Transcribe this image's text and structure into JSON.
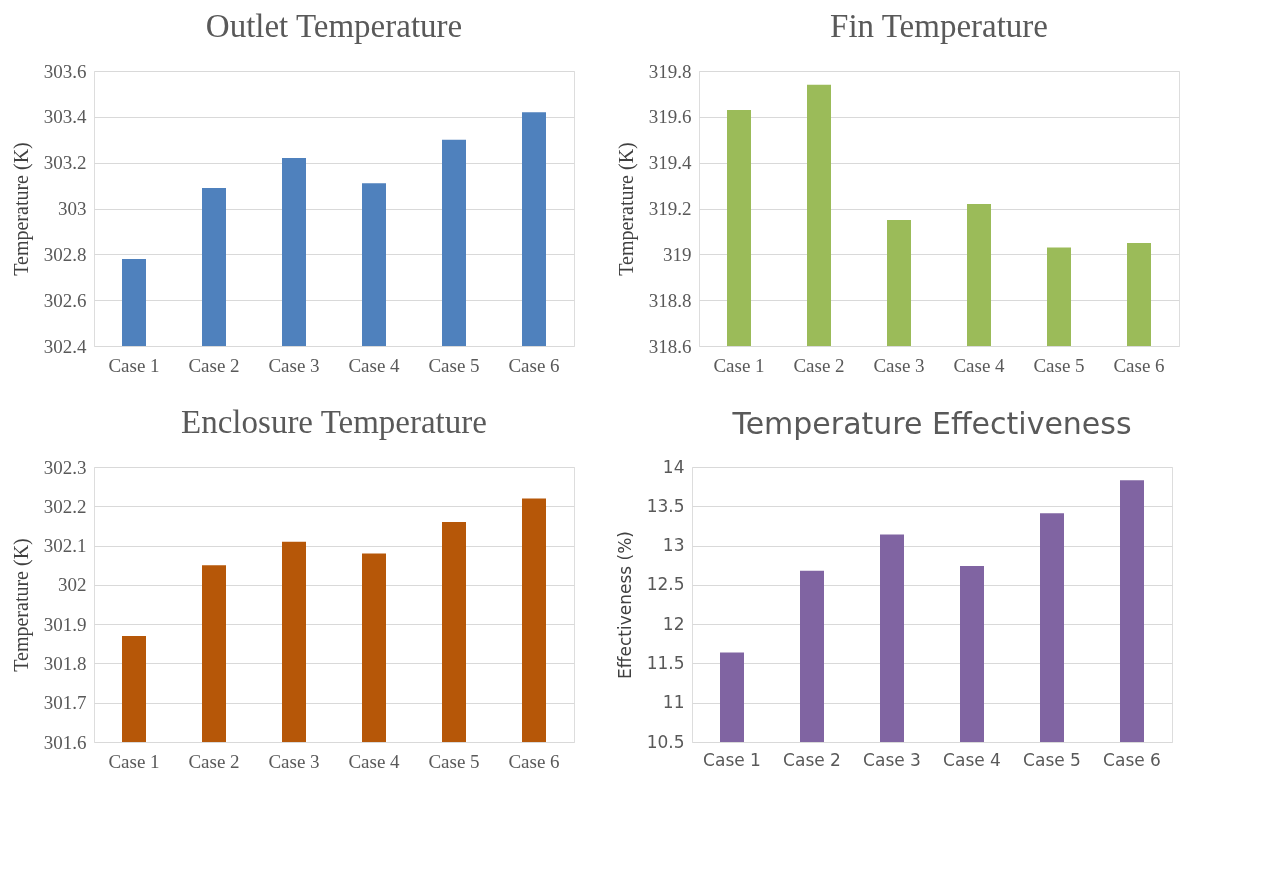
{
  "chart_data": [
    {
      "type": "bar",
      "title": "Outlet Temperature",
      "ylabel": "Temperature (K)",
      "categories": [
        "Case 1",
        "Case 2",
        "Case 3",
        "Case 4",
        "Case 5",
        "Case 6"
      ],
      "values": [
        302.78,
        303.09,
        303.22,
        303.11,
        303.3,
        303.42
      ],
      "color": "#4f81bd",
      "ylim": [
        302.4,
        303.6
      ],
      "yticks": [
        302.4,
        302.6,
        302.8,
        303,
        303.2,
        303.4,
        303.6
      ],
      "grid": "y"
    },
    {
      "type": "bar",
      "title": "Fin Temperature",
      "ylabel": "Temperature (K)",
      "categories": [
        "Case 1",
        "Case 2",
        "Case 3",
        "Case 4",
        "Case 5",
        "Case 6"
      ],
      "values": [
        319.63,
        319.74,
        319.15,
        319.22,
        319.03,
        319.05
      ],
      "color": "#9bbb59",
      "ylim": [
        318.6,
        319.8
      ],
      "yticks": [
        318.6,
        318.8,
        319,
        319.2,
        319.4,
        319.6,
        319.8
      ],
      "grid": "y"
    },
    {
      "type": "bar",
      "title": "Enclosure Temperature",
      "ylabel": "Temperature (K)",
      "categories": [
        "Case 1",
        "Case 2",
        "Case 3",
        "Case 4",
        "Case 5",
        "Case 6"
      ],
      "values": [
        301.87,
        302.05,
        302.11,
        302.08,
        302.16,
        302.22
      ],
      "color": "#b65708",
      "ylim": [
        301.6,
        302.3
      ],
      "yticks": [
        301.6,
        301.7,
        301.8,
        301.9,
        302,
        302.1,
        302.2,
        302.3
      ],
      "grid": "y"
    },
    {
      "type": "bar",
      "title": "Temperature Effectiveness",
      "ylabel": "Effectiveness (%)",
      "categories": [
        "Case 1",
        "Case 2",
        "Case 3",
        "Case 4",
        "Case 5",
        "Case 6"
      ],
      "values": [
        11.64,
        12.68,
        13.14,
        12.74,
        13.41,
        13.83
      ],
      "color": "#8064a2",
      "ylim": [
        10.5,
        14
      ],
      "yticks": [
        10.5,
        11,
        11.5,
        12,
        12.5,
        13,
        13.5,
        14
      ],
      "grid": "y"
    }
  ]
}
